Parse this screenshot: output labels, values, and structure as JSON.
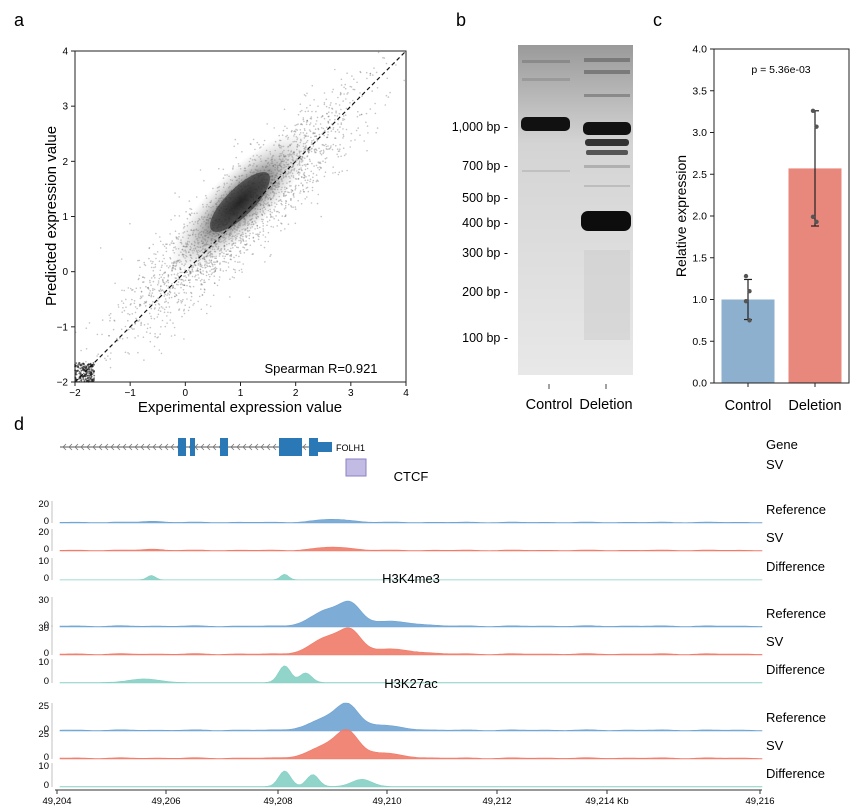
{
  "panels": {
    "a": {
      "label": "a"
    },
    "b": {
      "label": "b"
    },
    "c": {
      "label": "c"
    },
    "d": {
      "label": "d"
    }
  },
  "chart_data": [
    {
      "panel": "a",
      "type": "scatter",
      "xlabel": "Experimental expression value",
      "ylabel": "Predicted expression value",
      "xlim": [
        -2,
        4
      ],
      "ylim": [
        -2,
        4
      ],
      "xticks": [
        "−2",
        "−1",
        "0",
        "1",
        "2",
        "3",
        "4"
      ],
      "yticks": [
        "−2",
        "−1",
        "0",
        "1",
        "2",
        "3",
        "4"
      ],
      "annotation": "Spearman R=0.921",
      "reference_line": "y = x (dashed)",
      "density_center": [
        1.0,
        1.1
      ]
    },
    {
      "panel": "b",
      "type": "gel",
      "lanes": [
        "Control",
        "Deletion"
      ],
      "ladder_labels": [
        "1,000 bp -",
        "700 bp -",
        "500 bp -",
        "400 bp -",
        "300 bp -",
        "200 bp -",
        "100 bp -"
      ],
      "ladder_bp": [
        1000,
        700,
        500,
        400,
        300,
        200,
        100
      ]
    },
    {
      "panel": "c",
      "type": "bar",
      "categories": [
        "Control",
        "Deletion"
      ],
      "values": [
        1.0,
        2.57
      ],
      "errors": [
        0.24,
        0.69
      ],
      "points": [
        [
          0.75,
          0.98,
          1.1,
          1.28
        ],
        [
          1.93,
          1.99,
          3.07,
          3.26
        ]
      ],
      "colors": [
        "#8db0cf",
        "#e8877c"
      ],
      "ylabel": "Relative expression",
      "ylim": [
        0,
        4.0
      ],
      "yticks": [
        "0.0",
        "0.5",
        "1.0",
        "1.5",
        "2.0",
        "2.5",
        "3.0",
        "3.5",
        "4.0"
      ],
      "annotation": "p = 5.36e-03"
    },
    {
      "panel": "d",
      "type": "area",
      "gene": "FOLH1",
      "track_labels": {
        "gene": "Gene",
        "sv": "SV"
      },
      "xticks": [
        "49,204",
        "49,206",
        "49,208",
        "49,210",
        "49,212",
        "49,214 Kb",
        "49,216"
      ],
      "groups": [
        {
          "name": "CTCF",
          "max": [
            20,
            20,
            10
          ],
          "rows": [
            {
              "label": "Reference",
              "color": "#6fa3d2"
            },
            {
              "label": "SV",
              "color": "#f07a68"
            },
            {
              "label": "Difference",
              "color": "#85cfc4"
            }
          ]
        },
        {
          "name": "H3K4me3",
          "max": [
            30,
            30,
            10
          ],
          "rows": [
            {
              "label": "Reference",
              "color": "#6fa3d2"
            },
            {
              "label": "SV",
              "color": "#f07a68"
            },
            {
              "label": "Difference",
              "color": "#85cfc4"
            }
          ]
        },
        {
          "name": "H3K27ac",
          "max": [
            25,
            25,
            10
          ],
          "rows": [
            {
              "label": "Reference",
              "color": "#6fa3d2"
            },
            {
              "label": "SV",
              "color": "#f07a68"
            },
            {
              "label": "Difference",
              "color": "#85cfc4"
            }
          ]
        }
      ]
    }
  ]
}
